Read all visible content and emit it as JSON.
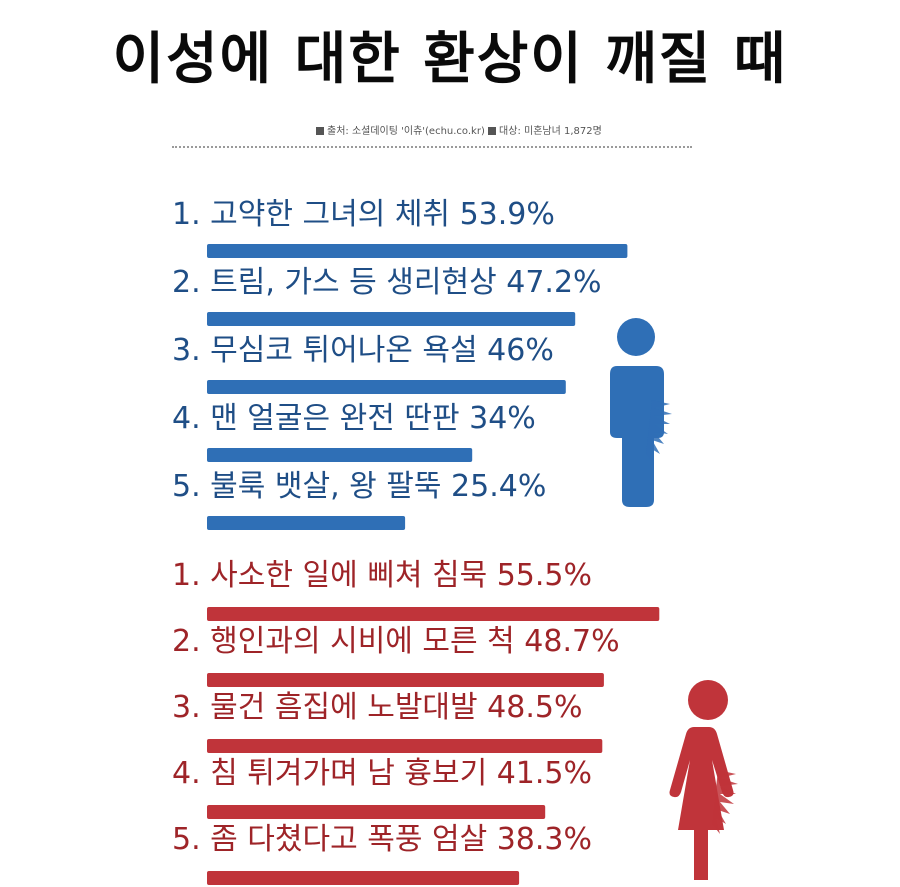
{
  "title": "이성에 대한 환상이 깨질 때",
  "source": {
    "text1": "출처: 소셜데이팅 '이츄'(echu.co.kr)",
    "text2": "대상: 미혼남녀 1,872명"
  },
  "colors": {
    "male": "#2f6fb6",
    "male_text": "#1f4e86",
    "female": "#c0343a",
    "female_text": "#9e2428",
    "title": "#0a0a0a"
  },
  "icons": {
    "male": "male-figure-icon",
    "female": "female-figure-icon"
  },
  "chart_data": [
    {
      "type": "bar",
      "orientation": "horizontal",
      "series": [
        {
          "labels": [
            "1. 고약한 그녀의 체취  53.9%",
            "2. 트림, 가스 등 생리현상  47.2%",
            "3. 무심코 튀어나온 욕설  46%",
            "4. 맨 얼굴은 완전 딴판  34%",
            "5. 불룩 뱃살, 왕 팔뚝  25.4%"
          ],
          "values": [
            53.9,
            47.2,
            46,
            34,
            25.4
          ]
        }
      ],
      "xlim": [
        0,
        100
      ],
      "grid": false
    },
    {
      "type": "bar",
      "orientation": "horizontal",
      "series": [
        {
          "labels": [
            "1. 사소한 일에 삐쳐 침묵 55.5%",
            "2. 행인과의 시비에 모른 척  48.7%",
            "3. 물건 흠집에 노발대발  48.5%",
            "4. 침 튀겨가며 남 흉보기  41.5%",
            "5. 좀 다쳤다고 폭풍 엄살  38.3%"
          ],
          "values": [
            55.5,
            48.7,
            48.5,
            41.5,
            38.3
          ]
        }
      ],
      "xlim": [
        0,
        100
      ],
      "grid": false
    }
  ]
}
